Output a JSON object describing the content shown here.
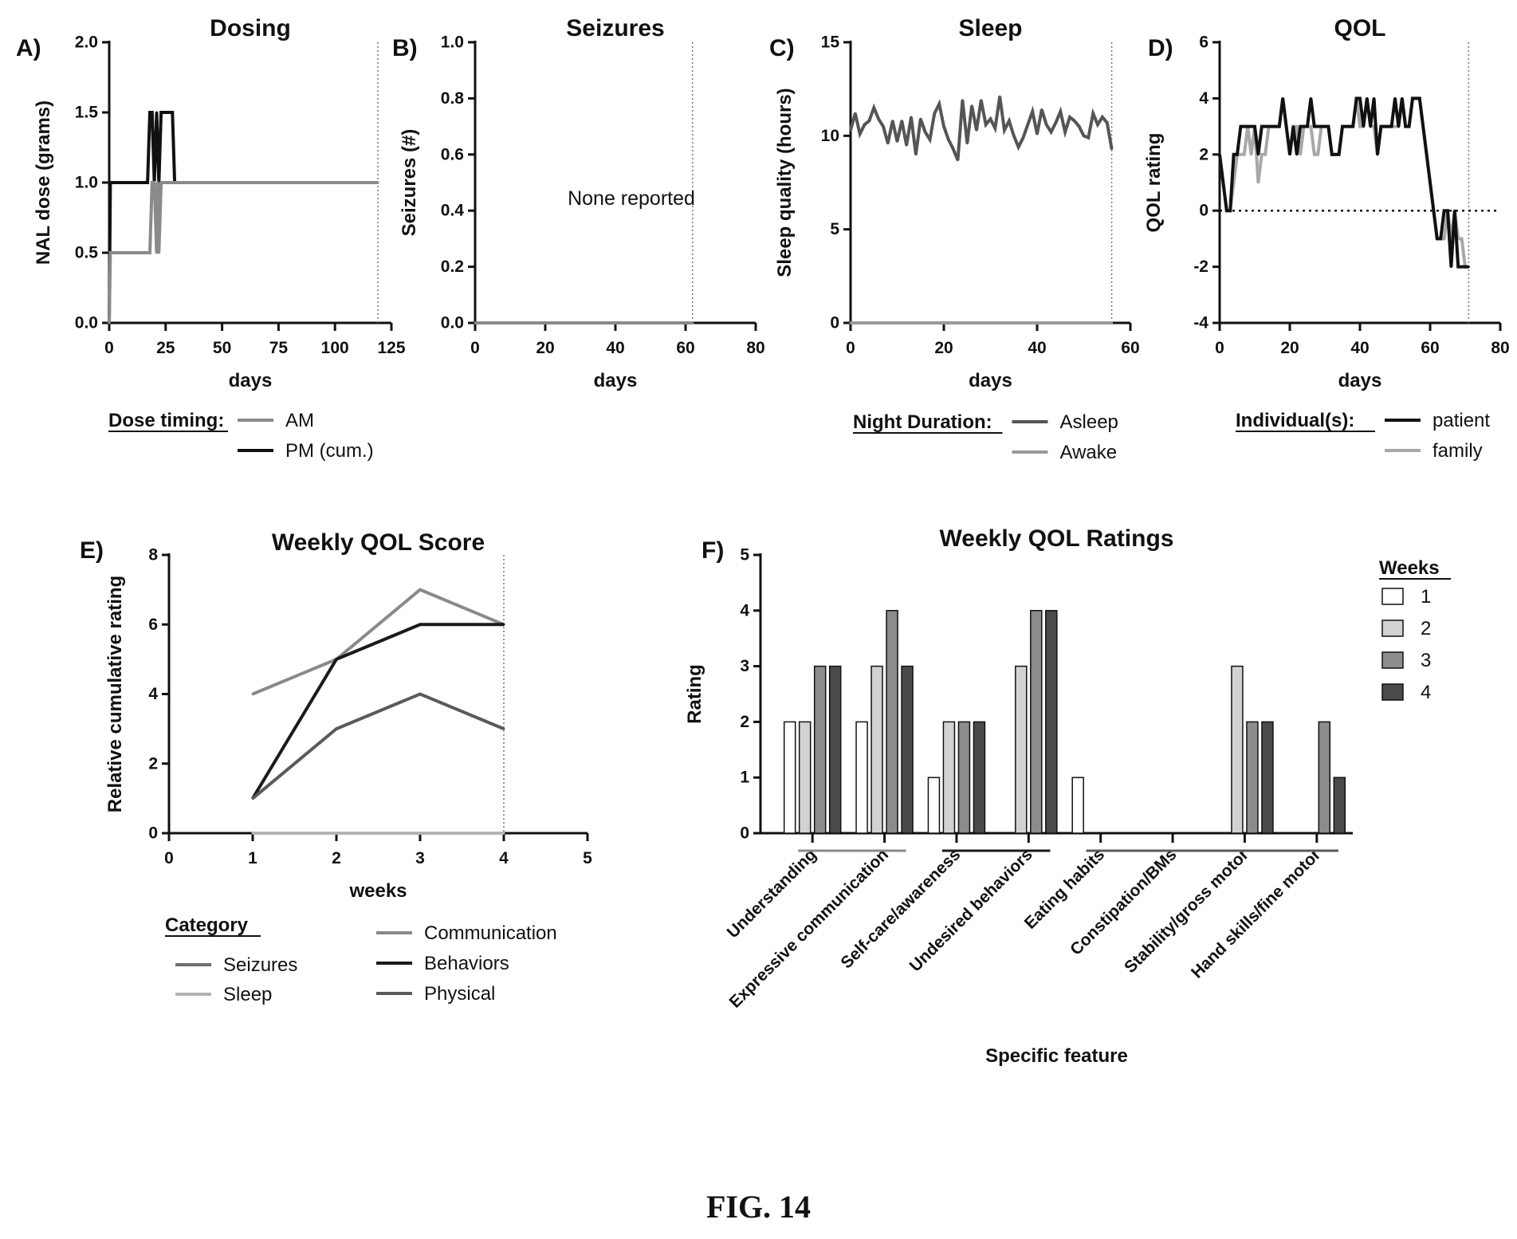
{
  "figure_caption": "FIG. 14",
  "chart_data": [
    {
      "id": "A",
      "type": "line",
      "panel_label": "A)",
      "title": "Dosing",
      "xlabel": "days",
      "ylabel": "NAL dose (grams)",
      "xlim": [
        0,
        125
      ],
      "ylim": [
        0,
        2.0
      ],
      "xticks": [
        0,
        25,
        50,
        75,
        100,
        125
      ],
      "yticks": [
        0,
        0.5,
        1.0,
        1.5,
        2.0
      ],
      "xtick_labels": [
        "0",
        "25",
        "50",
        "75",
        "100",
        "125"
      ],
      "ytick_labels": [
        "0.0",
        "0.5",
        "1.0",
        "1.5",
        "2.0"
      ],
      "vline": 119,
      "legend": {
        "heading": "Dose timing:",
        "items": [
          {
            "name": "AM",
            "color": "#8a8a8a"
          },
          {
            "name": "PM (cum.)",
            "color": "#111111"
          }
        ]
      },
      "series": [
        {
          "name": "PM (cum.)",
          "color": "#111111",
          "x": [
            0,
            0.5,
            17,
            18,
            19,
            20,
            21,
            22,
            23,
            24,
            25,
            28,
            29,
            30,
            119
          ],
          "y": [
            0,
            1.0,
            1.0,
            1.5,
            1.5,
            1.0,
            1.5,
            1.0,
            1.5,
            1.5,
            1.5,
            1.5,
            1.0,
            1.0,
            1.0
          ]
        },
        {
          "name": "AM",
          "color": "#8a8a8a",
          "x": [
            0,
            0.5,
            18,
            19,
            20,
            21,
            21.5,
            22,
            23,
            119
          ],
          "y": [
            0,
            0.5,
            0.5,
            1.0,
            1.0,
            0.5,
            1.0,
            0.5,
            1.0,
            1.0
          ]
        }
      ]
    },
    {
      "id": "B",
      "type": "line",
      "panel_label": "B)",
      "title": "Seizures",
      "xlabel": "days",
      "ylabel": "Seizures (#)",
      "xlim": [
        0,
        80
      ],
      "ylim": [
        0,
        1.0
      ],
      "xticks": [
        0,
        20,
        40,
        60,
        80
      ],
      "yticks": [
        0,
        0.2,
        0.4,
        0.6,
        0.8,
        1.0
      ],
      "xtick_labels": [
        "0",
        "20",
        "40",
        "60",
        "80"
      ],
      "ytick_labels": [
        "0.0",
        "0.2",
        "0.4",
        "0.6",
        "0.8",
        "1.0"
      ],
      "vline": 62,
      "annotation": "None reported",
      "series": [
        {
          "name": "",
          "color": "#8a8a8a",
          "x": [
            0,
            62
          ],
          "y": [
            0,
            0
          ]
        }
      ]
    },
    {
      "id": "C",
      "type": "line",
      "panel_label": "C)",
      "title": "Sleep",
      "xlabel": "days",
      "ylabel": "Sleep quality (hours)",
      "xlim": [
        0,
        60
      ],
      "ylim": [
        0,
        15
      ],
      "xticks": [
        0,
        20,
        40,
        60
      ],
      "yticks": [
        0,
        5,
        10,
        15
      ],
      "xtick_labels": [
        "0",
        "20",
        "40",
        "60"
      ],
      "ytick_labels": [
        "0",
        "5",
        "10",
        "15"
      ],
      "vline": 56,
      "legend": {
        "heading": "Night Duration:",
        "items": [
          {
            "name": "Asleep",
            "color": "#555555"
          },
          {
            "name": "Awake",
            "color": "#9a9a9a"
          }
        ]
      },
      "series": [
        {
          "name": "Asleep",
          "color": "#555555",
          "x": [
            0,
            1,
            2,
            3,
            4,
            5,
            6,
            7,
            8,
            9,
            10,
            11,
            12,
            13,
            14,
            15,
            16,
            17,
            18,
            19,
            20,
            21,
            22,
            23,
            24,
            25,
            26,
            27,
            28,
            29,
            30,
            31,
            32,
            33,
            34,
            35,
            36,
            37,
            38,
            39,
            40,
            41,
            42,
            43,
            44,
            45,
            46,
            47,
            48,
            49,
            50,
            51,
            52,
            53,
            54,
            55,
            56
          ],
          "y": [
            10.3,
            11.2,
            10.1,
            10.6,
            10.8,
            11.5,
            10.9,
            10.5,
            9.6,
            10.8,
            9.7,
            10.8,
            9.5,
            11.0,
            9.0,
            10.9,
            10.2,
            9.8,
            11.2,
            11.7,
            10.5,
            9.8,
            9.3,
            8.7,
            11.9,
            9.6,
            11.6,
            10.3,
            11.9,
            10.6,
            10.9,
            10.4,
            12.1,
            10.3,
            10.8,
            10.0,
            9.4,
            9.9,
            10.6,
            11.3,
            10.1,
            11.4,
            10.6,
            10.2,
            10.7,
            11.3,
            10.2,
            11.0,
            10.8,
            10.5,
            10.0,
            9.9,
            11.2,
            10.6,
            11.0,
            10.7,
            9.3
          ]
        },
        {
          "name": "Awake",
          "color": "#9a9a9a",
          "x": [
            0,
            56
          ],
          "y": [
            0,
            0
          ]
        }
      ]
    },
    {
      "id": "D",
      "type": "line",
      "panel_label": "D)",
      "title": "QOL",
      "xlabel": "days",
      "ylabel": "QOL rating",
      "xlim": [
        0,
        80
      ],
      "ylim": [
        -4,
        6
      ],
      "xticks": [
        0,
        20,
        40,
        60,
        80
      ],
      "yticks": [
        -4,
        -2,
        0,
        2,
        4,
        6
      ],
      "xtick_labels": [
        "0",
        "20",
        "40",
        "60",
        "80"
      ],
      "ytick_labels": [
        "-4",
        "-2",
        "0",
        "2",
        "4",
        "6"
      ],
      "vline": 71,
      "hline_dotted": 0,
      "legend": {
        "heading": "Individual(s):",
        "items": [
          {
            "name": "patient",
            "color": "#111111"
          },
          {
            "name": "family",
            "color": "#a8a8a8"
          }
        ]
      },
      "series": [
        {
          "name": "family",
          "color": "#a8a8a8",
          "x": [
            0,
            1,
            2,
            3,
            4,
            5,
            6,
            7,
            8,
            9,
            10,
            11,
            12,
            13,
            14,
            15,
            16,
            17,
            18,
            19,
            20,
            21,
            22,
            23,
            24,
            25,
            26,
            27,
            28,
            29,
            30,
            31,
            32,
            33,
            34,
            35,
            36,
            37,
            38,
            39,
            40,
            41,
            42,
            43,
            44,
            45,
            46,
            47,
            48,
            49,
            50,
            51,
            52,
            53,
            54,
            55,
            56,
            57,
            58,
            59,
            60,
            61,
            62,
            63,
            64,
            65,
            66,
            67,
            68,
            69,
            70,
            71
          ],
          "y": [
            2,
            1,
            0,
            0,
            1,
            2,
            2,
            2,
            3,
            2,
            3,
            1,
            2,
            2,
            3,
            3,
            3,
            3,
            4,
            3,
            2,
            3,
            3,
            2,
            3,
            3,
            3,
            2,
            2,
            3,
            3,
            3,
            2,
            2,
            2,
            3,
            3,
            3,
            3,
            4,
            3,
            3,
            4,
            3,
            3,
            2,
            3,
            3,
            3,
            3,
            3,
            3,
            4,
            3,
            3,
            4,
            4,
            4,
            3,
            2,
            1,
            0,
            -1,
            -1,
            -1,
            0,
            -1,
            0,
            -1,
            -1,
            -2,
            -2
          ]
        },
        {
          "name": "patient",
          "color": "#111111",
          "x": [
            0,
            1,
            2,
            3,
            4,
            5,
            6,
            7,
            8,
            9,
            10,
            11,
            12,
            13,
            14,
            15,
            16,
            17,
            18,
            19,
            20,
            21,
            22,
            23,
            24,
            25,
            26,
            27,
            28,
            29,
            30,
            31,
            32,
            33,
            34,
            35,
            36,
            37,
            38,
            39,
            40,
            41,
            42,
            43,
            44,
            45,
            46,
            47,
            48,
            49,
            50,
            51,
            52,
            53,
            54,
            55,
            56,
            57,
            58,
            59,
            60,
            61,
            62,
            63,
            64,
            65,
            66,
            67,
            68,
            69,
            70,
            71
          ],
          "y": [
            2,
            1,
            0,
            0,
            2,
            2,
            3,
            3,
            3,
            3,
            3,
            2,
            3,
            3,
            3,
            3,
            3,
            3,
            4,
            3,
            2,
            3,
            2,
            3,
            3,
            3,
            4,
            3,
            3,
            3,
            3,
            3,
            2,
            2,
            2,
            3,
            3,
            3,
            3,
            4,
            4,
            3,
            4,
            3,
            4,
            2,
            3,
            3,
            3,
            3,
            4,
            3,
            4,
            3,
            3,
            4,
            4,
            4,
            3,
            2,
            1,
            0,
            -1,
            -1,
            0,
            0,
            -2,
            0,
            -2,
            -2,
            -2,
            -2
          ]
        }
      ]
    },
    {
      "id": "E",
      "type": "line",
      "panel_label": "E)",
      "title": "Weekly QOL Score",
      "xlabel": "weeks",
      "ylabel": "Relative cumulative rating",
      "xlim": [
        0,
        5
      ],
      "ylim": [
        0,
        8
      ],
      "xticks": [
        0,
        1,
        2,
        3,
        4,
        5
      ],
      "yticks": [
        0,
        2,
        4,
        6,
        8
      ],
      "xtick_labels": [
        "0",
        "1",
        "2",
        "3",
        "4",
        "5"
      ],
      "ytick_labels": [
        "0",
        "2",
        "4",
        "6",
        "8"
      ],
      "vline": 4,
      "legend": {
        "heading": "Category",
        "items": [
          {
            "name": "Seizures",
            "color": "#6e6e6e"
          },
          {
            "name": "Sleep",
            "color": "#b4b4b4"
          },
          {
            "name": "Communication",
            "color": "#8a8a8a"
          },
          {
            "name": "Behaviors",
            "color": "#1a1a1a"
          },
          {
            "name": "Physical",
            "color": "#5a5a5a"
          }
        ]
      },
      "x": [
        1,
        2,
        3,
        4
      ],
      "series": [
        {
          "name": "Seizures",
          "color": "#6e6e6e",
          "values": [
            0,
            0,
            0,
            0
          ]
        },
        {
          "name": "Sleep",
          "color": "#b4b4b4",
          "values": [
            0,
            0,
            0,
            0
          ]
        },
        {
          "name": "Communication",
          "color": "#8a8a8a",
          "values": [
            4,
            5,
            7,
            6
          ]
        },
        {
          "name": "Behaviors",
          "color": "#1a1a1a",
          "values": [
            1,
            5,
            6,
            6
          ]
        },
        {
          "name": "Physical",
          "color": "#5a5a5a",
          "values": [
            1,
            3,
            4,
            3
          ]
        }
      ]
    },
    {
      "id": "F",
      "type": "bar",
      "panel_label": "F)",
      "title": "Weekly QOL Ratings",
      "xlabel": "Specific feature",
      "ylabel": "Rating",
      "ylim": [
        0,
        5
      ],
      "yticks": [
        0,
        1,
        2,
        3,
        4,
        5
      ],
      "ytick_labels": [
        "0",
        "1",
        "2",
        "3",
        "4",
        "5"
      ],
      "categories": [
        "Understanding",
        "Expressive communication",
        "Self-care/awareness",
        "Undesired behaviors",
        "Eating habits",
        "Constipation/BMs",
        "Stability/gross motor",
        "Hand skills/fine motor"
      ],
      "group_underlines": [
        {
          "from": 0,
          "to": 1,
          "color": "#8a8a8a"
        },
        {
          "from": 2,
          "to": 3,
          "color": "#1a1a1a"
        },
        {
          "from": 4,
          "to": 7,
          "color": "#5a5a5a"
        }
      ],
      "legend": {
        "heading": "Weeks",
        "items": [
          {
            "name": "1",
            "color": "#ffffff"
          },
          {
            "name": "2",
            "color": "#d2d2d2"
          },
          {
            "name": "3",
            "color": "#8c8c8c"
          },
          {
            "name": "4",
            "color": "#4a4a4a"
          }
        ]
      },
      "series": [
        {
          "name": "1",
          "color": "#ffffff",
          "values": [
            2,
            2,
            1,
            0,
            1,
            0,
            0,
            0
          ]
        },
        {
          "name": "2",
          "color": "#d2d2d2",
          "values": [
            2,
            3,
            2,
            3,
            0,
            0,
            3,
            0
          ]
        },
        {
          "name": "3",
          "color": "#8c8c8c",
          "values": [
            3,
            4,
            2,
            4,
            0,
            0,
            2,
            2
          ]
        },
        {
          "name": "4",
          "color": "#4a4a4a",
          "values": [
            3,
            3,
            2,
            4,
            0,
            0,
            2,
            1
          ]
        }
      ]
    }
  ]
}
